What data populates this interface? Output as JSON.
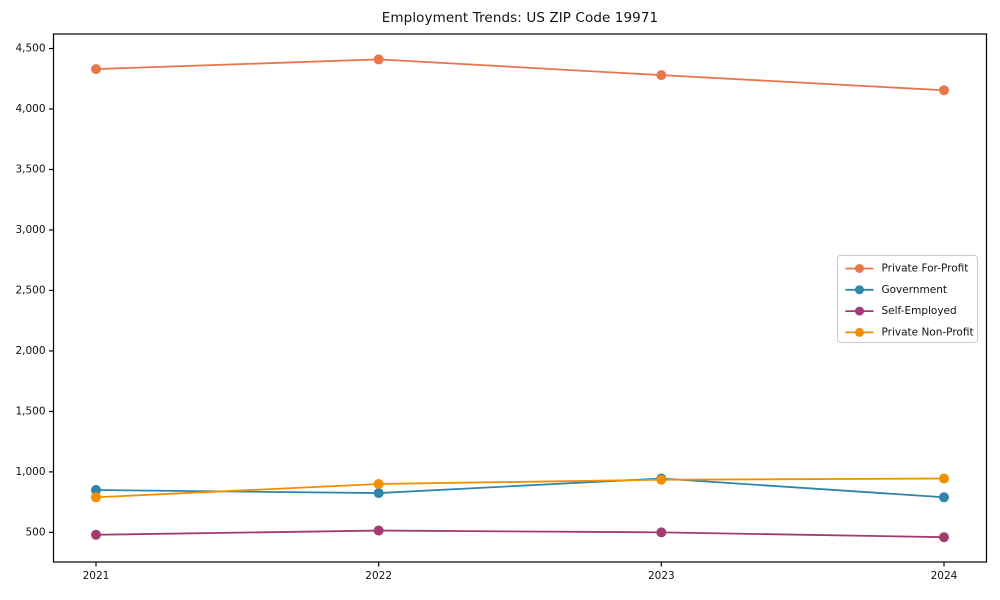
{
  "chart_data": {
    "type": "line",
    "title": "Employment Trends: US ZIP Code 19971",
    "xlabel": "",
    "ylabel": "",
    "categories": [
      "2021",
      "2022",
      "2023",
      "2024"
    ],
    "series": [
      {
        "name": "Private For-Profit",
        "color": "#E8764B",
        "values": [
          4330,
          4410,
          4280,
          4155
        ]
      },
      {
        "name": "Government",
        "color": "#2E86AB",
        "values": [
          850,
          825,
          945,
          790
        ]
      },
      {
        "name": "Self-Employed",
        "color": "#A23B72",
        "values": [
          480,
          515,
          500,
          460
        ]
      },
      {
        "name": "Private Non-Profit",
        "color": "#F18F01",
        "values": [
          790,
          900,
          935,
          945
        ]
      }
    ],
    "ylim": [
      255,
      4620
    ],
    "yticks": [
      500,
      1000,
      1500,
      2000,
      2500,
      3000,
      3500,
      4000,
      4500
    ],
    "ytick_labels": [
      "500",
      "1,000",
      "1,500",
      "2,000",
      "2,500",
      "3,000",
      "3,500",
      "4,000",
      "4,500"
    ],
    "grid": false,
    "legend_position": "middle-right",
    "axis_color": "#000000",
    "background_color": "#ffffff",
    "legend_border_color": "#cccccc"
  }
}
